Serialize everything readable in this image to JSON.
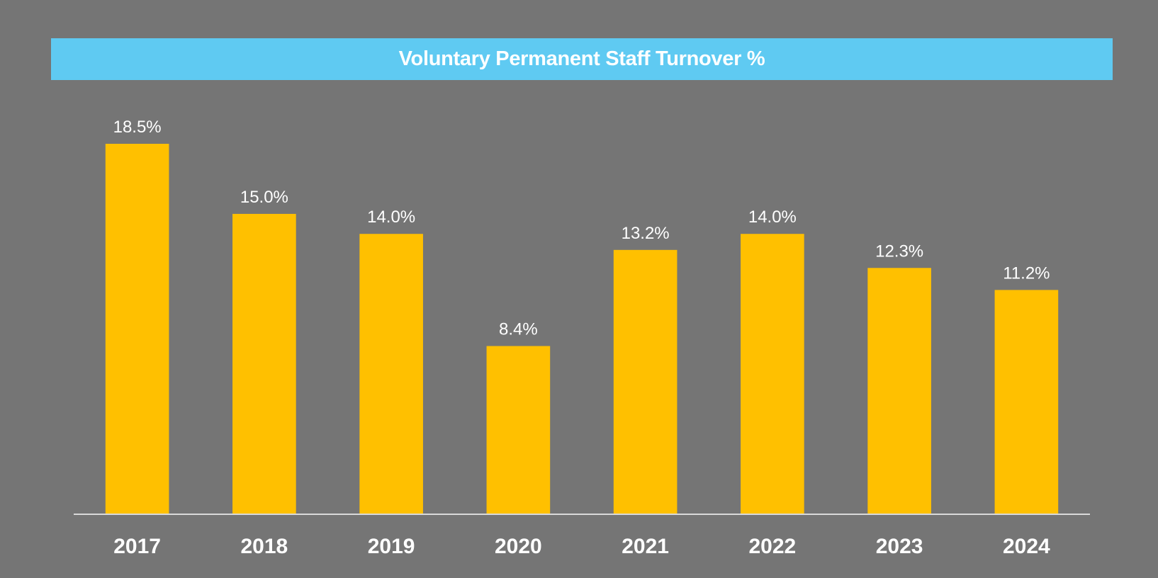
{
  "chart_data": {
    "type": "bar",
    "title": "Voluntary Permanent Staff Turnover %",
    "xlabel": "",
    "ylabel": "",
    "categories": [
      "2017",
      "2018",
      "2019",
      "2020",
      "2021",
      "2022",
      "2023",
      "2024"
    ],
    "values": [
      18.5,
      15.0,
      14.0,
      8.4,
      13.2,
      14.0,
      12.3,
      11.2
    ],
    "data_labels": [
      "18.5%",
      "15.0%",
      "14.0%",
      "8.4%",
      "13.2%",
      "14.0%",
      "12.3%",
      "11.2%"
    ],
    "ylim": [
      0,
      18.5
    ],
    "grid": false,
    "legend": "none",
    "colors": {
      "background": "#757575",
      "title_banner": "#5FCAF2",
      "bar": "#FFC000",
      "axis_line": "#D9D9D9",
      "text": "#FFFFFF"
    }
  }
}
